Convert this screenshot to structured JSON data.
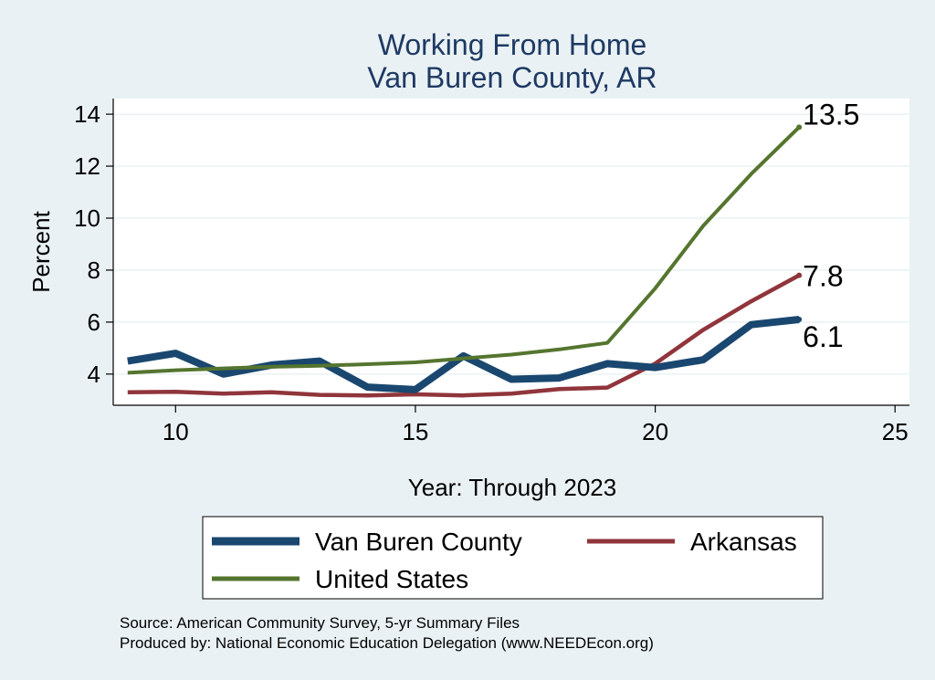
{
  "chart_data": {
    "type": "line",
    "title": "Working From Home",
    "subtitle": "Van Buren County, AR",
    "xlabel": "Year: Through 2023",
    "ylabel": "Percent",
    "xlim": [
      8.7,
      25.3
    ],
    "ylim": [
      2.8,
      14.6
    ],
    "xticks": [
      10,
      15,
      20,
      25
    ],
    "yticks": [
      4,
      6,
      8,
      10,
      12,
      14
    ],
    "grid": true,
    "legend_position": "bottom",
    "series": [
      {
        "name": "Van Buren County",
        "color": "#1a476f",
        "x": [
          9,
          10,
          11,
          12,
          13,
          14,
          15,
          16,
          17,
          18,
          19,
          20,
          21,
          22,
          23
        ],
        "values": [
          4.5,
          4.8,
          4.0,
          4.35,
          4.5,
          3.5,
          3.4,
          4.7,
          3.8,
          3.85,
          4.4,
          4.25,
          4.55,
          5.9,
          6.1
        ],
        "end_label": "6.1"
      },
      {
        "name": "Arkansas",
        "color": "#90353b",
        "x": [
          9,
          10,
          11,
          12,
          13,
          14,
          15,
          16,
          17,
          18,
          19,
          20,
          21,
          22,
          23
        ],
        "values": [
          3.3,
          3.32,
          3.25,
          3.3,
          3.2,
          3.18,
          3.22,
          3.18,
          3.25,
          3.42,
          3.48,
          4.4,
          5.7,
          6.8,
          7.8
        ],
        "end_label": "7.8"
      },
      {
        "name": "United States",
        "color": "#55752f",
        "x": [
          9,
          10,
          11,
          12,
          13,
          14,
          15,
          16,
          17,
          18,
          19,
          20,
          21,
          22,
          23
        ],
        "values": [
          4.05,
          4.15,
          4.22,
          4.28,
          4.32,
          4.38,
          4.45,
          4.6,
          4.75,
          4.95,
          5.2,
          7.3,
          9.7,
          11.7,
          13.5
        ],
        "end_label": "13.5"
      }
    ]
  },
  "source": {
    "line1": "Source: American Community Survey, 5-yr Summary Files",
    "line2": "Produced by: National Economic Education Delegation (www.NEEDEcon.org)"
  }
}
